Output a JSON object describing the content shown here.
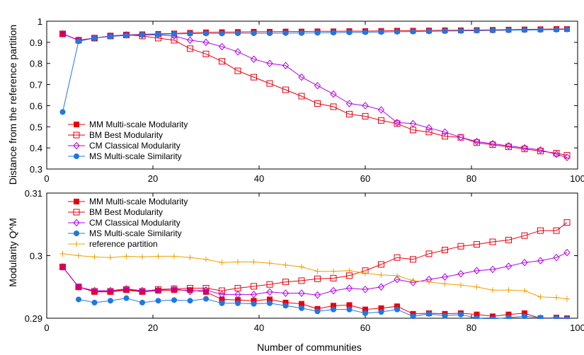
{
  "chart_data": [
    {
      "type": "line",
      "ylabel": "Distance from the reference partition",
      "xlim": [
        0,
        100
      ],
      "ylim": [
        0.3,
        1.0
      ],
      "xticks": [
        "0",
        "20",
        "40",
        "60",
        "80",
        "100"
      ],
      "yticks": [
        "0.3",
        "0.4",
        "0.5",
        "0.6",
        "0.7",
        "0.8",
        "0.9",
        "1"
      ],
      "legend_position": "bottom-left",
      "x": [
        3,
        6,
        9,
        12,
        15,
        18,
        21,
        24,
        27,
        30,
        33,
        36,
        39,
        42,
        45,
        48,
        51,
        54,
        57,
        60,
        63,
        66,
        69,
        72,
        75,
        78,
        81,
        84,
        87,
        90,
        93,
        96,
        98
      ],
      "series": [
        {
          "name": "MM Multi-scale Modularity",
          "color": "#e8000b",
          "marker": "filled-square",
          "values": [
            0.94,
            0.91,
            0.92,
            0.93,
            0.935,
            0.938,
            0.94,
            0.942,
            0.945,
            0.947,
            0.948,
            0.949,
            0.95,
            0.95,
            0.951,
            0.951,
            0.952,
            0.952,
            0.953,
            0.953,
            0.954,
            0.955,
            0.955,
            0.956,
            0.957,
            0.957,
            0.958,
            0.959,
            0.96,
            0.961,
            0.962,
            0.963,
            0.963
          ]
        },
        {
          "name": "BM Best Modularity",
          "color": "#e8000b",
          "marker": "open-square",
          "values": [
            0.94,
            0.91,
            0.92,
            0.93,
            0.935,
            0.93,
            0.92,
            0.91,
            0.87,
            0.845,
            0.81,
            0.765,
            0.735,
            0.705,
            0.675,
            0.645,
            0.61,
            0.595,
            0.56,
            0.55,
            0.53,
            0.515,
            0.485,
            0.475,
            0.455,
            0.45,
            0.425,
            0.415,
            0.405,
            0.395,
            0.385,
            0.375,
            0.365
          ]
        },
        {
          "name": "CM Classical Modularity",
          "color": "#b000e8",
          "marker": "open-diamond",
          "values": [
            0.94,
            0.91,
            0.92,
            0.93,
            0.935,
            0.935,
            0.935,
            0.93,
            0.91,
            0.9,
            0.88,
            0.855,
            0.82,
            0.8,
            0.79,
            0.735,
            0.695,
            0.655,
            0.61,
            0.6,
            0.58,
            0.52,
            0.515,
            0.495,
            0.475,
            0.45,
            0.43,
            0.42,
            0.41,
            0.4,
            0.39,
            0.37,
            0.355
          ]
        },
        {
          "name": "MS Multi-scale Similarity",
          "color": "#1f78e0",
          "marker": "filled-circle",
          "values": [
            0.57,
            0.905,
            0.92,
            0.928,
            0.932,
            0.936,
            0.938,
            0.94,
            0.941,
            0.942,
            0.942,
            0.943,
            0.943,
            0.943,
            0.944,
            0.944,
            0.945,
            0.946,
            0.947,
            0.948,
            0.949,
            0.95,
            0.951,
            0.952,
            0.953,
            0.954,
            0.955,
            0.956,
            0.957,
            0.958,
            0.959,
            0.96,
            0.961
          ]
        }
      ]
    },
    {
      "type": "line",
      "xlabel": "Number of communities",
      "ylabel": "Modularity Q^M",
      "xlim": [
        0,
        100
      ],
      "ylim": [
        0.29,
        0.31
      ],
      "xticks": [
        "0",
        "20",
        "40",
        "60",
        "80",
        "100"
      ],
      "yticks": [
        "0.29",
        "0.3",
        "0.31"
      ],
      "legend_position": "top-left",
      "x": [
        3,
        6,
        9,
        12,
        15,
        18,
        21,
        24,
        27,
        30,
        33,
        36,
        39,
        42,
        45,
        48,
        51,
        54,
        57,
        60,
        63,
        66,
        69,
        72,
        75,
        78,
        81,
        84,
        87,
        90,
        93,
        96,
        98
      ],
      "series": [
        {
          "name": "MM Multi-scale Modularity",
          "color": "#e8000b",
          "marker": "filled-square",
          "values": [
            0.2982,
            0.295,
            0.2942,
            0.2942,
            0.2945,
            0.2942,
            0.2944,
            0.2945,
            0.2945,
            0.2942,
            0.293,
            0.2929,
            0.2928,
            0.293,
            0.2925,
            0.2923,
            0.2915,
            0.292,
            0.2921,
            0.2914,
            0.2916,
            0.2919,
            0.2907,
            0.2908,
            0.2907,
            0.2908,
            0.2906,
            0.2903,
            0.2906,
            0.2908,
            0.29,
            0.2901,
            0.29
          ]
        },
        {
          "name": "BM Best Modularity",
          "color": "#e8000b",
          "marker": "open-square",
          "values": [
            0.2982,
            0.295,
            0.2943,
            0.2943,
            0.2946,
            0.2943,
            0.2946,
            0.2947,
            0.2948,
            0.2948,
            0.2944,
            0.2948,
            0.2951,
            0.2954,
            0.2958,
            0.296,
            0.2963,
            0.2964,
            0.2968,
            0.2976,
            0.2986,
            0.2997,
            0.2994,
            0.3003,
            0.3009,
            0.3015,
            0.3018,
            0.3022,
            0.3025,
            0.3032,
            0.304,
            0.304,
            0.3053
          ]
        },
        {
          "name": "CM Classical Modularity",
          "color": "#b000e8",
          "marker": "open-diamond",
          "values": [
            0.2982,
            0.295,
            0.2944,
            0.2944,
            0.2947,
            0.2944,
            0.2945,
            0.2947,
            0.2943,
            0.2945,
            0.2938,
            0.2938,
            0.2938,
            0.2942,
            0.294,
            0.294,
            0.2937,
            0.2944,
            0.2948,
            0.2946,
            0.295,
            0.2962,
            0.2957,
            0.2962,
            0.2966,
            0.2971,
            0.2976,
            0.2978,
            0.2983,
            0.2989,
            0.2992,
            0.2997,
            0.3005
          ]
        },
        {
          "name": "MS Multi-scale Similarity",
          "color": "#1f78e0",
          "marker": "filled-circle",
          "values": [
            null,
            0.293,
            0.2925,
            0.2928,
            0.2932,
            0.2925,
            0.2928,
            0.2929,
            0.2928,
            0.2931,
            0.2924,
            0.2924,
            0.2923,
            0.2924,
            0.292,
            0.2916,
            0.2911,
            0.2914,
            0.2914,
            0.2908,
            0.291,
            0.2914,
            0.2903,
            0.2907,
            0.2904,
            0.2906,
            0.29,
            0.2899,
            0.2901,
            0.2903,
            0.2901,
            0.29,
            0.2899
          ]
        },
        {
          "name": "reference partition",
          "color": "#f0a000",
          "marker": "plus",
          "values": [
            0.3003,
            0.3,
            0.2998,
            0.2997,
            0.2999,
            0.2998,
            0.2999,
            0.2999,
            0.2997,
            0.2994,
            0.2989,
            0.299,
            0.299,
            0.2988,
            0.2985,
            0.2982,
            0.2975,
            0.2975,
            0.2976,
            0.2972,
            0.2969,
            0.2968,
            0.296,
            0.2958,
            0.2955,
            0.2953,
            0.295,
            0.2945,
            0.2945,
            0.2944,
            0.2934,
            0.2933,
            0.2931
          ]
        }
      ]
    }
  ]
}
